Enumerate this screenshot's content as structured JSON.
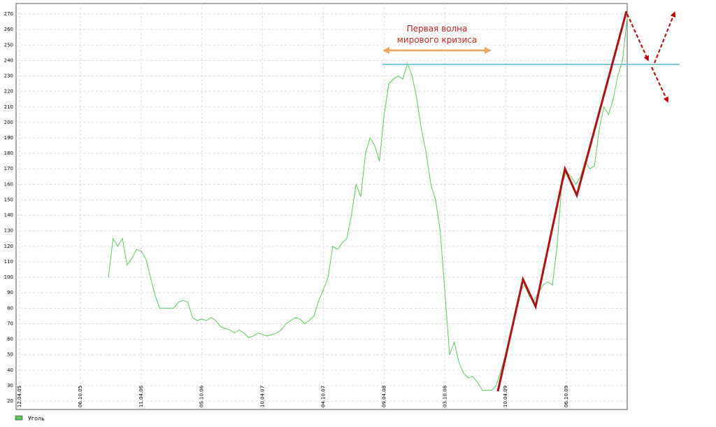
{
  "chart_data": {
    "type": "line",
    "annotation": [
      "Первая волна",
      "мирового кризиса"
    ],
    "categories": [
      "12.04.05",
      null,
      null,
      null,
      null,
      null,
      null,
      null,
      null,
      null,
      null,
      null,
      null,
      "06.10.05",
      null,
      null,
      null,
      null,
      null,
      null,
      null,
      null,
      null,
      null,
      null,
      null,
      "11.04.06",
      null,
      null,
      null,
      null,
      null,
      null,
      null,
      null,
      null,
      null,
      null,
      null,
      "05.10.06",
      null,
      null,
      null,
      null,
      null,
      null,
      null,
      null,
      null,
      null,
      null,
      null,
      "10.04.07",
      null,
      null,
      null,
      null,
      null,
      null,
      null,
      null,
      null,
      null,
      null,
      null,
      "04.10.07",
      null,
      null,
      null,
      null,
      null,
      null,
      null,
      null,
      null,
      null,
      null,
      null,
      "09.04.08",
      null,
      null,
      null,
      null,
      null,
      null,
      null,
      null,
      null,
      null,
      null,
      null,
      "03.10.08",
      null,
      null,
      null,
      null,
      null,
      null,
      null,
      null,
      null,
      null,
      null,
      null,
      "10.04.09",
      null,
      null,
      null,
      null,
      null,
      null,
      null,
      null,
      null,
      null,
      null,
      null,
      "06.10.09",
      null,
      null,
      null,
      null,
      null,
      null,
      null,
      null,
      null,
      null,
      null,
      null,
      null
    ],
    "series": [
      {
        "name": "Уголь",
        "color": "#5cc95c",
        "values": [
          null,
          null,
          null,
          null,
          null,
          null,
          null,
          null,
          null,
          null,
          null,
          null,
          null,
          null,
          null,
          null,
          null,
          null,
          null,
          100,
          125,
          120,
          125,
          108,
          112,
          118,
          117,
          112,
          100,
          88,
          80,
          80,
          80,
          80,
          84,
          85,
          84,
          74,
          72,
          73,
          72,
          74,
          72,
          68,
          67,
          66,
          64,
          66,
          64,
          61,
          62,
          64,
          63,
          62,
          63,
          64,
          66,
          70,
          72,
          74,
          73,
          70,
          72,
          75,
          85,
          92,
          100,
          120,
          118,
          122,
          125,
          140,
          160,
          152,
          180,
          190,
          185,
          175,
          205,
          225,
          228,
          230,
          228,
          238,
          230,
          215,
          195,
          180,
          160,
          150,
          130,
          90,
          50,
          58,
          45,
          38,
          35,
          36,
          32,
          27,
          27,
          27,
          30,
          40,
          50,
          62,
          78,
          90,
          95,
          88,
          85,
          90,
          95,
          97,
          95,
          120,
          160,
          168,
          165,
          160,
          165,
          175,
          170,
          172,
          195,
          210,
          205,
          215,
          230,
          240,
          268
        ]
      }
    ],
    "ylim": [
      14.6,
      276.8
    ],
    "yticks": [
      20,
      30,
      40,
      50,
      60,
      70,
      80,
      90,
      100,
      110,
      120,
      130,
      140,
      150,
      160,
      170,
      180,
      190,
      200,
      210,
      220,
      230,
      240,
      250,
      260,
      270
    ],
    "grid": true
  }
}
